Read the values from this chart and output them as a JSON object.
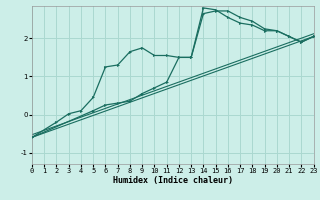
{
  "xlabel": "Humidex (Indice chaleur)",
  "bg_color": "#cceee8",
  "grid_color": "#aad8d0",
  "line_color": "#1a6e60",
  "xmin": 0,
  "xmax": 23,
  "ymin": -1.3,
  "ymax": 2.85,
  "yticks": [
    -1,
    0,
    1,
    2
  ],
  "xticks": [
    0,
    1,
    2,
    3,
    4,
    5,
    6,
    7,
    8,
    9,
    10,
    11,
    12,
    13,
    14,
    15,
    16,
    17,
    18,
    19,
    20,
    21,
    22,
    23
  ],
  "curve1_x": [
    0,
    2,
    3,
    4,
    5,
    6,
    7,
    8,
    9,
    10,
    11,
    12,
    13,
    14,
    15,
    16,
    17,
    18,
    19,
    20,
    21,
    22,
    23
  ],
  "curve1_y": [
    -0.6,
    -0.2,
    0.02,
    0.1,
    0.45,
    1.25,
    1.3,
    1.65,
    1.75,
    1.55,
    1.55,
    1.5,
    1.5,
    2.65,
    2.72,
    2.72,
    2.55,
    2.45,
    2.25,
    2.2,
    2.05,
    1.9,
    2.05
  ],
  "curve2_x": [
    0,
    5,
    6,
    7,
    8,
    9,
    10,
    11,
    12,
    13,
    14,
    15,
    16,
    17,
    18,
    19,
    20,
    21,
    22,
    23
  ],
  "curve2_y": [
    -0.6,
    0.1,
    0.25,
    0.3,
    0.35,
    0.55,
    0.7,
    0.85,
    1.5,
    1.5,
    2.8,
    2.75,
    2.55,
    2.4,
    2.35,
    2.2,
    2.2,
    2.05,
    1.9,
    2.05
  ],
  "line1_x": [
    0,
    23
  ],
  "line1_y": [
    -0.6,
    2.05
  ],
  "line2_x": [
    0,
    23
  ],
  "line2_y": [
    -0.53,
    2.12
  ]
}
